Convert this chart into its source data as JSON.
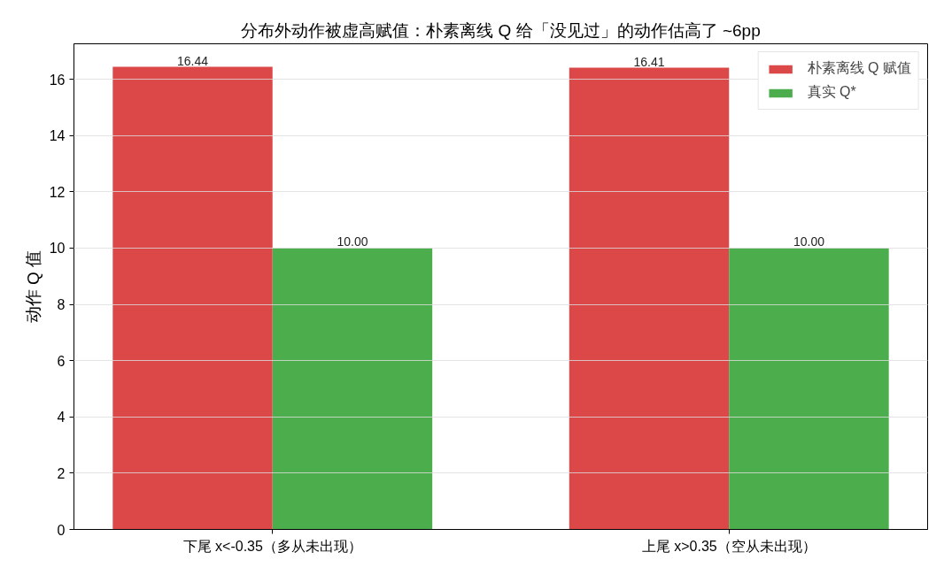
{
  "chart_data": {
    "type": "bar",
    "title": "分布外动作被虚高赋值：朴素离线 Q 给「没见过」的动作估高了 ~6pp",
    "ylabel": "动作 Q 值",
    "categories": [
      "下尾 x<-0.35（多从未出现）",
      "上尾 x>0.35（空从未出现）"
    ],
    "series": [
      {
        "name": "朴素离线 Q 赋值",
        "color": "#dc4848",
        "values": [
          16.44,
          16.41
        ],
        "value_labels": [
          "16.44",
          "16.41"
        ]
      },
      {
        "name": "真实 Q*",
        "color": "#4cad4c",
        "values": [
          10.0,
          10.0
        ],
        "value_labels": [
          "10.00",
          "10.00"
        ]
      }
    ],
    "ylim": [
      0,
      17.26
    ],
    "yticks": [
      0,
      2,
      4,
      6,
      8,
      10,
      12,
      14,
      16
    ],
    "grid": "y",
    "legend": "top right"
  }
}
